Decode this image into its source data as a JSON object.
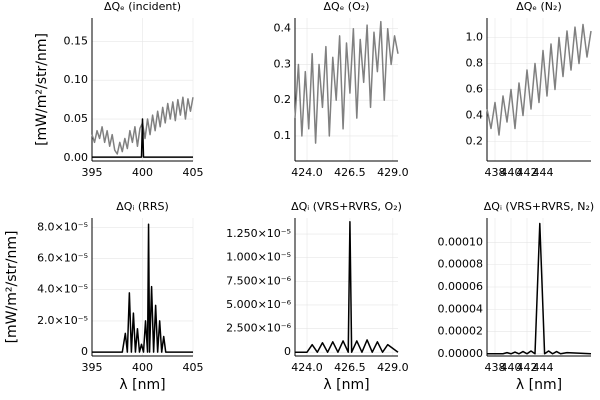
{
  "chart_data": [
    {
      "type": "line",
      "title": "ΔQₑ (incident)",
      "ylabel": "[mW/m²/str/nm]",
      "grid": true,
      "xlim": [
        395,
        405
      ],
      "xticks": [
        395,
        400,
        405
      ],
      "ylim": [
        -0.004,
        0.18
      ],
      "yticks": [
        {
          "value": 0,
          "label": "0.00"
        },
        {
          "value": 0.05,
          "label": "0.05"
        },
        {
          "value": 0.1,
          "label": "0.10"
        },
        {
          "value": 0.15,
          "label": "0.15"
        }
      ],
      "series": [
        {
          "color": "#808080",
          "x": [
            395,
            395.25,
            395.5,
            395.75,
            396,
            396.25,
            396.5,
            396.75,
            397,
            397.25,
            397.5,
            397.75,
            398,
            398.25,
            398.5,
            398.75,
            399,
            399.25,
            399.5,
            399.75,
            400,
            400.25,
            400.5,
            400.75,
            401,
            401.25,
            401.5,
            401.75,
            402,
            402.25,
            402.5,
            402.75,
            403,
            403.25,
            403.5,
            403.75,
            404,
            404.25,
            404.5,
            404.75,
            405
          ],
          "values": [
            0.03,
            0.02,
            0.035,
            0.025,
            0.04,
            0.02,
            0.035,
            0.015,
            0.03,
            0.01,
            0.005,
            0.02,
            0.008,
            0.025,
            0.012,
            0.035,
            0.02,
            0.04,
            0.015,
            0.038,
            0.045,
            0.025,
            0.05,
            0.03,
            0.055,
            0.035,
            0.06,
            0.04,
            0.065,
            0.045,
            0.07,
            0.05,
            0.072,
            0.048,
            0.075,
            0.055,
            0.078,
            0.05,
            0.076,
            0.06,
            0.078
          ]
        },
        {
          "color": "#000000",
          "x": [
            395,
            399.9,
            400,
            400.1,
            405
          ],
          "values": [
            0.001,
            0.001,
            0.05,
            0.001,
            0.001
          ]
        }
      ]
    },
    {
      "type": "line",
      "title": "ΔQₑ (O₂)",
      "grid": true,
      "xlim": [
        423.3,
        429.3
      ],
      "xticks": [
        {
          "value": 424,
          "label": "424.0"
        },
        426.5,
        {
          "value": 429,
          "label": "429.0"
        }
      ],
      "ylim": [
        0.03,
        0.43
      ],
      "yticks": [
        0.1,
        0.2,
        0.3,
        0.4
      ],
      "series": [
        {
          "color": "#808080",
          "x": [
            423.3,
            423.5,
            423.7,
            423.9,
            424.1,
            424.3,
            424.5,
            424.7,
            424.9,
            425.1,
            425.3,
            425.5,
            425.7,
            425.9,
            426.1,
            426.3,
            426.5,
            426.7,
            426.9,
            427.1,
            427.3,
            427.5,
            427.7,
            427.9,
            428.1,
            428.3,
            428.5,
            428.7,
            428.9,
            429.1,
            429.3
          ],
          "values": [
            0.15,
            0.3,
            0.1,
            0.28,
            0.12,
            0.33,
            0.08,
            0.3,
            0.18,
            0.35,
            0.1,
            0.32,
            0.2,
            0.38,
            0.12,
            0.36,
            0.22,
            0.4,
            0.15,
            0.37,
            0.25,
            0.41,
            0.18,
            0.39,
            0.28,
            0.42,
            0.2,
            0.4,
            0.3,
            0.38,
            0.33
          ]
        }
      ]
    },
    {
      "type": "line",
      "title": "ΔQₑ (N₂)",
      "grid": true,
      "xlim": [
        437,
        450
      ],
      "xticks": [
        438,
        440,
        442,
        444
      ],
      "ylim": [
        0.05,
        1.15
      ],
      "yticks": [
        0.2,
        0.4,
        0.6,
        0.8,
        {
          "value": 1,
          "label": "1.0"
        }
      ],
      "series": [
        {
          "color": "#808080",
          "x": [
            437,
            437.5,
            438,
            438.5,
            439,
            439.5,
            440,
            440.5,
            441,
            441.5,
            442,
            442.5,
            443,
            443.5,
            444,
            444.5,
            445,
            445.5,
            446,
            446.5,
            447,
            447.5,
            448,
            448.5,
            449,
            449.5,
            450
          ],
          "values": [
            0.45,
            0.3,
            0.5,
            0.25,
            0.55,
            0.35,
            0.6,
            0.3,
            0.65,
            0.4,
            0.75,
            0.45,
            0.8,
            0.5,
            0.9,
            0.55,
            0.95,
            0.6,
            1.0,
            0.7,
            1.05,
            0.75,
            1.08,
            0.8,
            1.1,
            0.85,
            1.05
          ]
        }
      ]
    },
    {
      "type": "line",
      "title": "ΔQᵢ (RRS)",
      "ylabel": "[mW/m²/str/nm]",
      "xlabel": "λ [nm]",
      "grid": true,
      "xlim": [
        395,
        405
      ],
      "xticks": [
        395,
        400,
        405
      ],
      "ylim": [
        -2.5e-06,
        8.6e-05
      ],
      "yticks": [
        0,
        {
          "value": 2e-05,
          "label": "2.0×10⁻⁵"
        },
        {
          "value": 4e-05,
          "label": "4.0×10⁻⁵"
        },
        {
          "value": 6e-05,
          "label": "6.0×10⁻⁵"
        },
        {
          "value": 8e-05,
          "label": "8.0×10⁻⁵"
        }
      ],
      "series": [
        {
          "color": "#000000",
          "x": [
            395,
            398.0,
            398.3,
            398.5,
            398.7,
            398.9,
            399.1,
            399.3,
            399.5,
            399.7,
            399.9,
            400.1,
            400.3,
            400.5,
            400.6,
            400.7,
            400.9,
            401.1,
            401.3,
            401.5,
            401.7,
            401.9,
            402.1,
            402.3,
            405
          ],
          "values": [
            0,
            0,
            1.2e-05,
            0,
            3.8e-05,
            0,
            2.5e-05,
            0,
            1.5e-05,
            0,
            5e-06,
            0,
            2e-05,
            0,
            8.2e-05,
            0,
            4.2e-05,
            0,
            3e-05,
            0,
            2e-05,
            0,
            1e-05,
            0,
            0
          ]
        }
      ]
    },
    {
      "type": "line",
      "title": "ΔQᵢ (VRS+RVRS, O₂)",
      "xlabel": "λ [nm]",
      "grid": true,
      "xlim": [
        423.3,
        429.3
      ],
      "xticks": [
        {
          "value": 424,
          "label": "424.0"
        },
        426.5,
        {
          "value": 429,
          "label": "429.0"
        }
      ],
      "ylim": [
        -4e-07,
        1.42e-05
      ],
      "yticks": [
        0,
        {
          "value": 2.5e-06,
          "label": "2.500×10⁻⁶"
        },
        {
          "value": 5e-06,
          "label": "5.000×10⁻⁶"
        },
        {
          "value": 7.5e-06,
          "label": "7.500×10⁻⁶"
        },
        {
          "value": 1e-05,
          "label": "1.000×10⁻⁵"
        },
        {
          "value": 1.25e-05,
          "label": "1.250×10⁻⁵"
        }
      ],
      "series": [
        {
          "color": "#000000",
          "x": [
            423.3,
            424,
            424.3,
            424.6,
            424.9,
            425.2,
            425.5,
            425.8,
            426.1,
            426.4,
            426.5,
            426.6,
            426.9,
            427.2,
            427.5,
            427.8,
            428.1,
            428.4,
            428.7,
            429.3
          ],
          "values": [
            0,
            0,
            8e-07,
            0,
            1e-06,
            0,
            1.1e-06,
            0,
            1.2e-06,
            0,
            1.38e-05,
            0,
            1.2e-06,
            0,
            1.3e-06,
            0,
            1.1e-06,
            0,
            8e-07,
            0
          ]
        }
      ]
    },
    {
      "type": "line",
      "title": "ΔQᵢ (VRS+RVRS, N₂)",
      "xlabel": "λ [nm]",
      "grid": true,
      "xlim": [
        437,
        450
      ],
      "xticks": [
        438,
        440,
        442,
        444
      ],
      "ylim": [
        -2e-06,
        0.000122
      ],
      "yticks": [
        {
          "value": 0,
          "label": "0.00000"
        },
        {
          "value": 2e-05,
          "label": "0.00002"
        },
        {
          "value": 4e-05,
          "label": "0.00004"
        },
        {
          "value": 6e-05,
          "label": "0.00006"
        },
        {
          "value": 8e-05,
          "label": "0.00008"
        },
        {
          "value": 0.0001,
          "label": "0.00010"
        }
      ],
      "series": [
        {
          "color": "#000000",
          "x": [
            437,
            439,
            439.5,
            440,
            440.5,
            441,
            441.5,
            442,
            442.5,
            443,
            443.6,
            444.2,
            444.7,
            445.2,
            445.7,
            446.2,
            447,
            450
          ],
          "values": [
            0,
            0,
            1e-06,
            0,
            1.5e-06,
            0,
            2e-06,
            0,
            2.5e-06,
            0,
            0.000117,
            0,
            2.5e-06,
            0,
            2e-06,
            0,
            1e-06,
            0
          ]
        }
      ]
    }
  ]
}
